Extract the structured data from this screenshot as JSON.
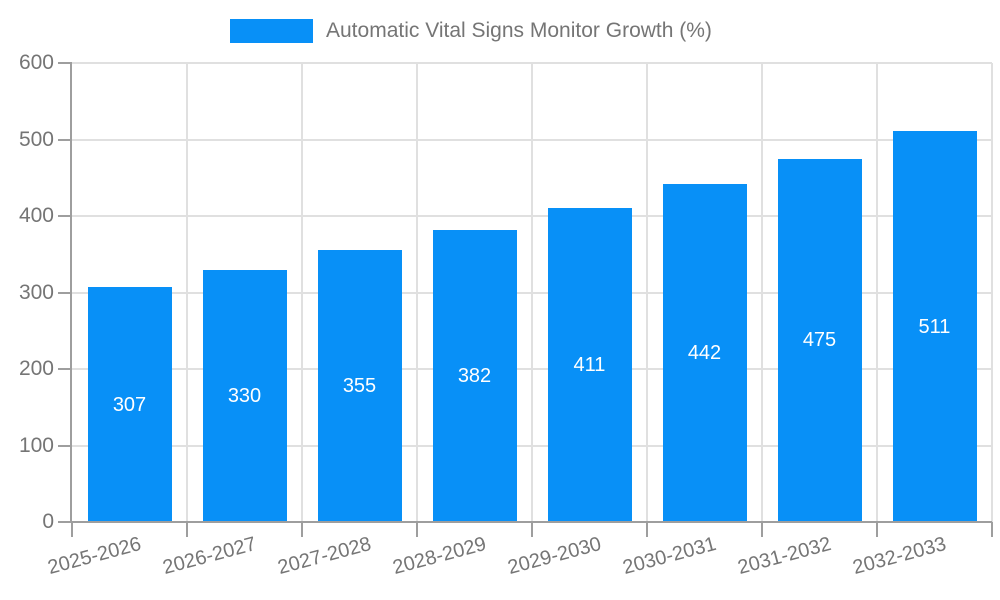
{
  "chart_data": {
    "type": "bar",
    "title": "Automatic Vital Signs Monitor Growth (%)",
    "legend_position": "top",
    "categories": [
      "2025-2026",
      "2026-2027",
      "2027-2028",
      "2028-2029",
      "2029-2030",
      "2030-2031",
      "2031-2032",
      "2032-2033"
    ],
    "values": [
      307,
      330,
      355,
      382,
      411,
      442,
      475,
      511
    ],
    "xlabel": "",
    "ylabel": "",
    "ylim": [
      0,
      600
    ],
    "ytick_step": 100,
    "ytick_labels": [
      "0",
      "100",
      "200",
      "300",
      "400",
      "500",
      "600"
    ],
    "grid": true,
    "value_labels_inside_bars": true,
    "colors": {
      "bar": "#0890F7",
      "value_label": "#ffffff",
      "axis_text": "#757575",
      "axis_line": "#9e9e9e",
      "grid_line": "#e0e0e0",
      "background": "#ffffff"
    }
  }
}
